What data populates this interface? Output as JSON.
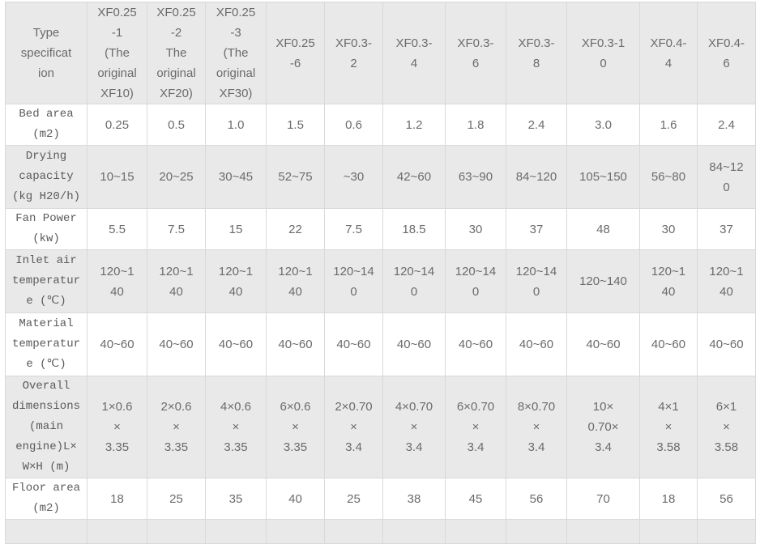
{
  "colors": {
    "band_gray": "#e9e9e9",
    "band_white": "#ffffff",
    "border": "#d9d9d9",
    "label_text": "#5a5a5a",
    "value_text": "#6b6b6b"
  },
  "table": {
    "header": [
      "Type\nspecificat\nion",
      "XF0.25\n-1\n(The\noriginal\nXF10)",
      "XF0.25\n-2\nThe\noriginal\nXF20)",
      "XF0.25\n-3\n(The\noriginal\nXF30)",
      "XF0.25\n-6",
      "XF0.3-\n2",
      "XF0.3-\n4",
      "XF0.3-\n6",
      "XF0.3-\n8",
      "XF0.3-1\n0",
      "XF0.4-\n4",
      "XF0.4-\n6"
    ],
    "rows": [
      {
        "label": "Bed area\n(m2)",
        "values": [
          "0.25",
          "0.5",
          "1.0",
          "1.5",
          "0.6",
          "1.2",
          "1.8",
          "2.4",
          "3.0",
          "1.6",
          "2.4"
        ]
      },
      {
        "label": "Drying\ncapacity\n(kg H20/h)",
        "values": [
          "10~15",
          "20~25",
          "30~45",
          "52~75",
          "~30",
          "42~60",
          "63~90",
          "84~120",
          "105~150",
          "56~80",
          "84~12\n0"
        ]
      },
      {
        "label": "Fan Power\n(kw)",
        "values": [
          "5.5",
          "7.5",
          "15",
          "22",
          "7.5",
          "18.5",
          "30",
          "37",
          "48",
          "30",
          "37"
        ]
      },
      {
        "label": "Inlet air\ntemperatur\ne (℃)",
        "values": [
          "120~1\n40",
          "120~1\n40",
          "120~1\n40",
          "120~1\n40",
          "120~14\n0",
          "120~14\n0",
          "120~14\n0",
          "120~14\n0",
          "120~140",
          "120~1\n40",
          "120~1\n40"
        ]
      },
      {
        "label": "Material\ntemperatur\ne (℃)",
        "values": [
          "40~60",
          "40~60",
          "40~60",
          "40~60",
          "40~60",
          "40~60",
          "40~60",
          "40~60",
          "40~60",
          "40~60",
          "40~60"
        ]
      },
      {
        "label": "Overall\ndimensions\n(main\nengine)L×\nW×H (m)",
        "values": [
          "1×0.6\n×\n3.35",
          "2×0.6\n×\n3.35",
          "4×0.6\n×\n3.35",
          "6×0.6\n×\n3.35",
          "2×0.70\n×\n3.4",
          "4×0.70\n×\n3.4",
          "6×0.70\n×\n3.4",
          "8×0.70\n×\n3.4",
          "10×\n0.70×\n3.4",
          "4×1\n×\n3.58",
          "6×1\n×\n3.58"
        ]
      },
      {
        "label": "Floor area\n(m2)",
        "values": [
          "18",
          "25",
          "35",
          "40",
          "25",
          "38",
          "45",
          "56",
          "70",
          "18",
          "56"
        ]
      }
    ]
  }
}
